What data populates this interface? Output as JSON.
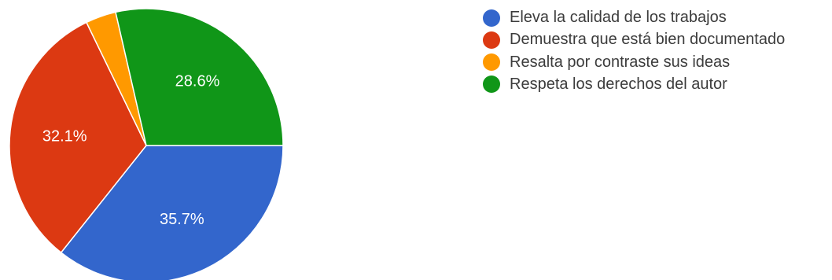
{
  "chart_data": {
    "type": "pie",
    "title": "",
    "legend_position": "top-right",
    "slices": [
      {
        "label": "Eleva la calidad de los trabajos",
        "value": 35.7,
        "display": "35.7%",
        "color": "#3366cc"
      },
      {
        "label": "Demuestra que está bien documentado",
        "value": 32.1,
        "display": "32.1%",
        "color": "#dc3912"
      },
      {
        "label": "Resalta por contraste sus ideas",
        "value": 3.6,
        "display": "",
        "color": "#ff9900"
      },
      {
        "label": "Respeta los derechos del autor",
        "value": 28.6,
        "display": "28.6%",
        "color": "#109618"
      }
    ]
  }
}
